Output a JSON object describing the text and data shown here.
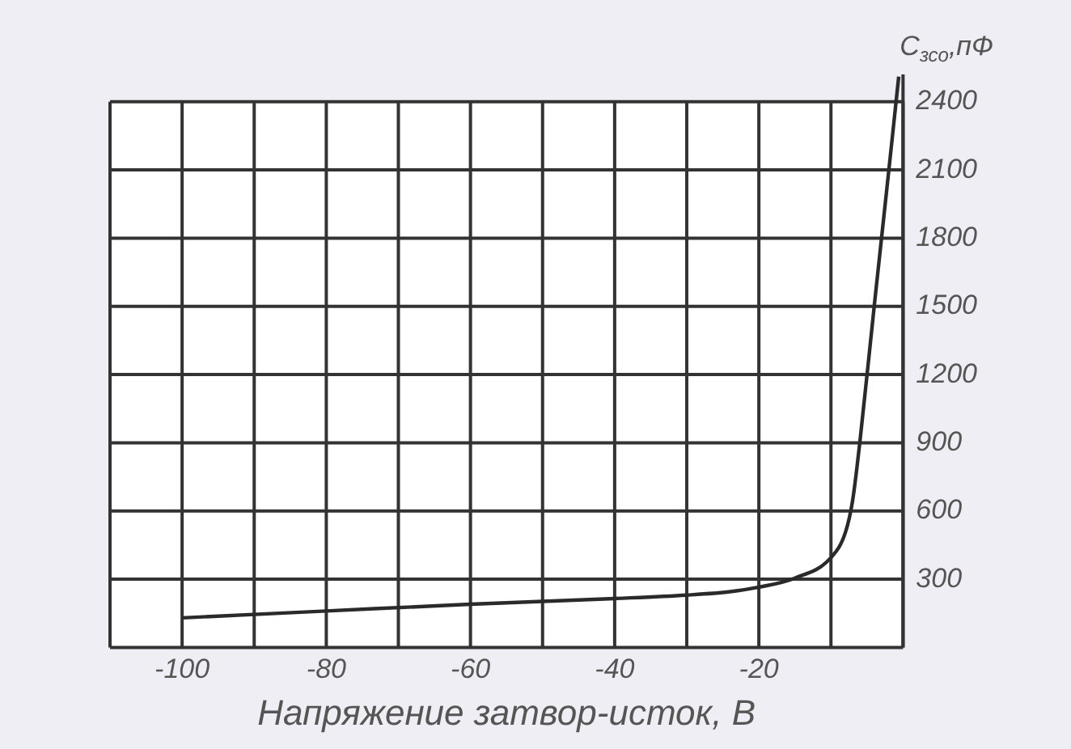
{
  "chart_data": {
    "type": "line",
    "xlabel": "Напряжение затвор-исток, В",
    "ylabel": "C$_{зсо}$,пФ",
    "x": [
      -100,
      -80,
      -60,
      -40,
      -30,
      -24,
      -20,
      -15,
      -10,
      -8,
      -7,
      -6,
      -4,
      -2,
      -0.6
    ],
    "series": [
      {
        "color": "#2a2a2a",
        "values": [
          130,
          160,
          190,
          215,
          230,
          245,
          265,
          305,
          395,
          505,
          645,
          900,
          1500,
          2090,
          2510
        ]
      }
    ],
    "xlim": [
      -110,
      0
    ],
    "xticks": [
      {
        "value": -110,
        "label": null
      },
      -100,
      {
        "value": -90,
        "label": null
      },
      -80,
      {
        "value": -70,
        "label": null
      },
      -60,
      {
        "value": -50,
        "label": null
      },
      -40,
      {
        "value": -30,
        "label": null
      },
      -20,
      {
        "value": -10,
        "label": null
      },
      {
        "value": 0,
        "label": null
      }
    ],
    "ylim": [
      0,
      2520
    ],
    "yticks": [
      {
        "value": 0,
        "label": null
      },
      300,
      600,
      900,
      1200,
      1500,
      1800,
      2100,
      2400
    ],
    "grid": true,
    "legend": false,
    "marker": "none",
    "line_style": "solid"
  }
}
